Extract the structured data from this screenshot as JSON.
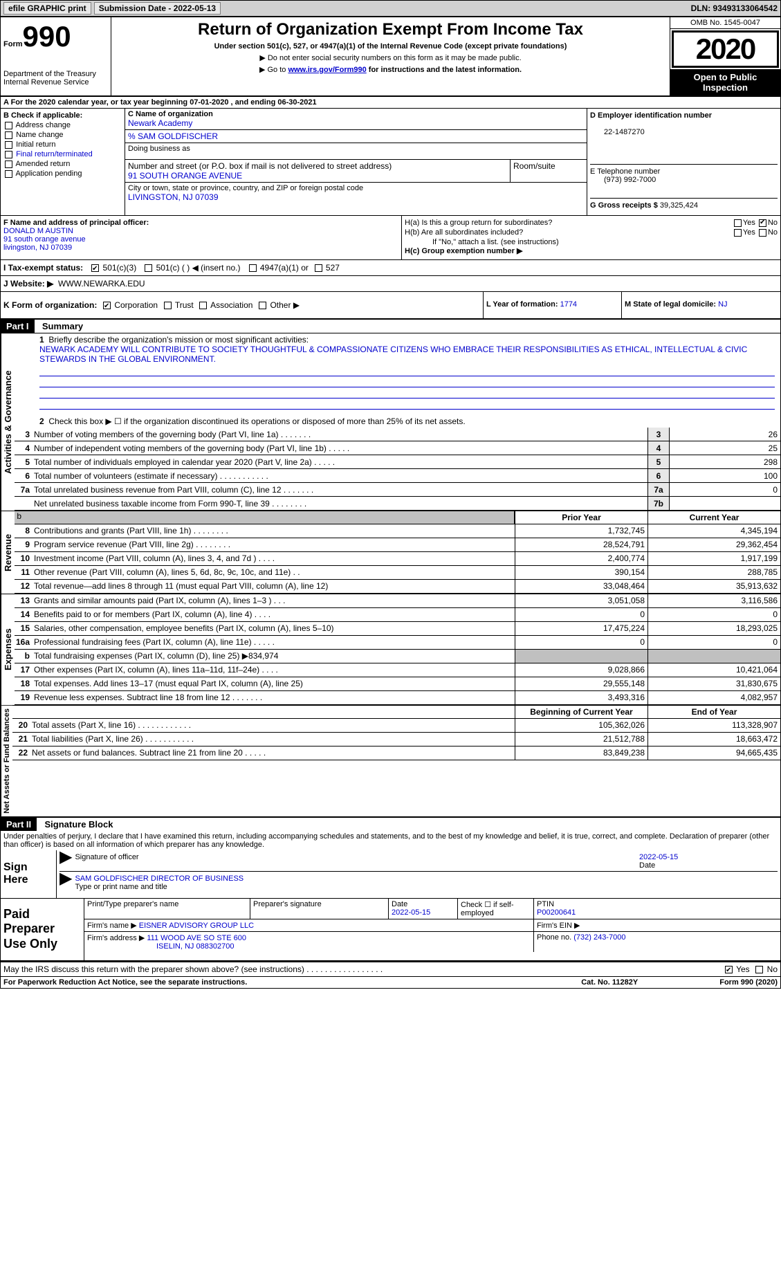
{
  "topbar": {
    "efile": "efile GRAPHIC print",
    "submission": "Submission Date - 2022-05-13",
    "dln": "DLN: 93493133064542"
  },
  "header": {
    "form_prefix": "Form",
    "form_number": "990",
    "dept": "Department of the Treasury\nInternal Revenue Service",
    "title": "Return of Organization Exempt From Income Tax",
    "subtitle": "Under section 501(c), 527, or 4947(a)(1) of the Internal Revenue Code (except private foundations)",
    "note1": "▶ Do not enter social security numbers on this form as it may be made public.",
    "note2_pre": "▶ Go to ",
    "note2_link": "www.irs.gov/Form990",
    "note2_post": " for instructions and the latest information.",
    "omb": "OMB No. 1545-0047",
    "year": "2020",
    "inspection": "Open to Public Inspection"
  },
  "sectionA": "A For the 2020 calendar year, or tax year beginning 07-01-2020     , and ending 06-30-2021",
  "sectionB": {
    "header": "B Check if applicable:",
    "items": [
      "Address change",
      "Name change",
      "Initial return",
      "Final return/terminated",
      "Amended return",
      "Application pending"
    ]
  },
  "sectionC": {
    "c_label": "C Name of organization",
    "org_name": "Newark Academy",
    "care_of": "% SAM GOLDFISCHER",
    "dba_label": "Doing business as",
    "addr_label": "Number and street (or P.O. box if mail is not delivered to street address)",
    "room_label": "Room/suite",
    "addr": "91 SOUTH ORANGE AVENUE",
    "city_label": "City or town, state or province, country, and ZIP or foreign postal code",
    "city": "LIVINGSTON, NJ  07039"
  },
  "sectionD": {
    "d_label": "D Employer identification number",
    "ein": "22-1487270",
    "e_label": "E Telephone number",
    "phone": "(973) 992-7000",
    "g_label": "G Gross receipts $",
    "gross": "39,325,424"
  },
  "sectionF": {
    "label": "F Name and address of principal officer:",
    "name": "DONALD M AUSTIN",
    "addr1": "91 south orange avenue",
    "addr2": "livingston, NJ  07039"
  },
  "sectionH": {
    "ha": "H(a)  Is this a group return for subordinates?",
    "hb": "H(b)  Are all subordinates included?",
    "hb_note": "If \"No,\" attach a list. (see instructions)",
    "hc": "H(c)  Group exemption number ▶",
    "yes": "Yes",
    "no": "No"
  },
  "rowI": {
    "label": "I   Tax-exempt status:",
    "o1": "501(c)(3)",
    "o2": "501(c) (  ) ◀ (insert no.)",
    "o3": "4947(a)(1) or",
    "o4": "527"
  },
  "rowJ": {
    "label": "J   Website: ▶",
    "value": "WWW.NEWARKA.EDU"
  },
  "rowK": {
    "label": "K Form of organization:",
    "corp": "Corporation",
    "trust": "Trust",
    "assoc": "Association",
    "other": "Other ▶",
    "l_label": "L Year of formation:",
    "l_val": "1774",
    "m_label": "M State of legal domicile:",
    "m_val": "NJ"
  },
  "part1": {
    "header": "Part I",
    "title": "Summary",
    "side1": "Activities & Governance",
    "side2": "Revenue",
    "side3": "Expenses",
    "side4": "Net Assets or Fund Balances",
    "brief_label": "Briefly describe the organization's mission or most significant activities:",
    "mission": "NEWARK ACADEMY WILL CONTRIBUTE TO SOCIETY THOUGHTFUL & COMPASSIONATE CITIZENS WHO EMBRACE THEIR RESPONSIBILITIES AS ETHICAL, INTELLECTUAL & CIVIC STEWARDS IN THE GLOBAL ENVIRONMENT.",
    "line2": "Check this box ▶ ☐  if the organization discontinued its operations or disposed of more than 25% of its net assets.",
    "gov_lines": [
      {
        "n": "3",
        "d": "Number of voting members of the governing body (Part VI, line 1a)   .    .    .    .    .    .    .",
        "b": "3",
        "v": "26"
      },
      {
        "n": "4",
        "d": "Number of independent voting members of the governing body (Part VI, line 1b)   .    .    .    .    .",
        "b": "4",
        "v": "25"
      },
      {
        "n": "5",
        "d": "Total number of individuals employed in calendar year 2020 (Part V, line 2a)   .    .    .    .    .",
        "b": "5",
        "v": "298"
      },
      {
        "n": "6",
        "d": "Total number of volunteers (estimate if necessary)   .    .    .    .    .    .    .    .    .    .    .",
        "b": "6",
        "v": "100"
      },
      {
        "n": "7a",
        "d": "Total unrelated business revenue from Part VIII, column (C), line 12   .    .    .    .    .    .    .",
        "b": "7a",
        "v": "0"
      },
      {
        "n": "",
        "d": "Net unrelated business taxable income from Form 990-T, line 39   .    .    .    .    .    .    .    .",
        "b": "7b",
        "v": ""
      }
    ],
    "prior_year": "Prior Year",
    "current_year": "Current Year",
    "rev_lines": [
      {
        "n": "8",
        "d": "Contributions and grants (Part VIII, line 1h)   .    .    .    .    .    .    .    .",
        "v1": "1,732,745",
        "v2": "4,345,194"
      },
      {
        "n": "9",
        "d": "Program service revenue (Part VIII, line 2g)   .    .    .    .    .    .    .    .",
        "v1": "28,524,791",
        "v2": "29,362,454"
      },
      {
        "n": "10",
        "d": "Investment income (Part VIII, column (A), lines 3, 4, and 7d )   .    .    .    .",
        "v1": "2,400,774",
        "v2": "1,917,199"
      },
      {
        "n": "11",
        "d": "Other revenue (Part VIII, column (A), lines 5, 6d, 8c, 9c, 10c, and 11e)   .    .",
        "v1": "390,154",
        "v2": "288,785"
      },
      {
        "n": "12",
        "d": "Total revenue—add lines 8 through 11 (must equal Part VIII, column (A), line 12)",
        "v1": "33,048,464",
        "v2": "35,913,632"
      }
    ],
    "exp_lines": [
      {
        "n": "13",
        "d": "Grants and similar amounts paid (Part IX, column (A), lines 1–3 )   .    .    .",
        "v1": "3,051,058",
        "v2": "3,116,586"
      },
      {
        "n": "14",
        "d": "Benefits paid to or for members (Part IX, column (A), line 4)   .    .    .    .",
        "v1": "0",
        "v2": "0"
      },
      {
        "n": "15",
        "d": "Salaries, other compensation, employee benefits (Part IX, column (A), lines 5–10)",
        "v1": "17,475,224",
        "v2": "18,293,025"
      },
      {
        "n": "16a",
        "d": "Professional fundraising fees (Part IX, column (A), line 11e)   .    .    .    .    .",
        "v1": "0",
        "v2": "0"
      },
      {
        "n": "b",
        "d": "Total fundraising expenses (Part IX, column (D), line 25) ▶834,974",
        "v1": "",
        "v2": "",
        "shaded": true
      },
      {
        "n": "17",
        "d": "Other expenses (Part IX, column (A), lines 11a–11d, 11f–24e)   .    .    .    .",
        "v1": "9,028,866",
        "v2": "10,421,064"
      },
      {
        "n": "18",
        "d": "Total expenses. Add lines 13–17 (must equal Part IX, column (A), line 25)",
        "v1": "29,555,148",
        "v2": "31,830,675"
      },
      {
        "n": "19",
        "d": "Revenue less expenses. Subtract line 18 from line 12   .    .    .    .    .    .    .",
        "v1": "3,493,316",
        "v2": "4,082,957"
      }
    ],
    "begin_year": "Beginning of Current Year",
    "end_year": "End of Year",
    "net_lines": [
      {
        "n": "20",
        "d": "Total assets (Part X, line 16)   .    .    .    .    .    .    .    .    .    .    .    .",
        "v1": "105,362,026",
        "v2": "113,328,907"
      },
      {
        "n": "21",
        "d": "Total liabilities (Part X, line 26)   .    .    .    .    .    .    .    .    .    .    .",
        "v1": "21,512,788",
        "v2": "18,663,472"
      },
      {
        "n": "22",
        "d": "Net assets or fund balances. Subtract line 21 from line 20   .    .    .    .    .",
        "v1": "83,849,238",
        "v2": "94,665,435"
      }
    ]
  },
  "part2": {
    "header": "Part II",
    "title": "Signature Block",
    "decl": "Under penalties of perjury, I declare that I have examined this return, including accompanying schedules and statements, and to the best of my knowledge and belief, it is true, correct, and complete. Declaration of preparer (other than officer) is based on all information of which preparer has any knowledge.",
    "sign_here": "Sign Here",
    "sig_officer": "Signature of officer",
    "sig_date": "2022-05-15",
    "date_label": "Date",
    "officer_name": "SAM GOLDFISCHER  DIRECTOR OF BUSINESS",
    "officer_label": "Type or print name and title",
    "paid": "Paid Preparer Use Only",
    "prep_name_label": "Print/Type preparer's name",
    "prep_sig_label": "Preparer's signature",
    "prep_date_label": "Date",
    "prep_date": "2022-05-15",
    "self_emp": "Check ☐ if self-employed",
    "ptin_label": "PTIN",
    "ptin": "P00200641",
    "firm_name_label": "Firm's name    ▶",
    "firm_name": "EISNER ADVISORY GROUP LLC",
    "firm_ein_label": "Firm's EIN ▶",
    "firm_addr_label": "Firm's address ▶",
    "firm_addr1": "111 WOOD AVE SO STE 600",
    "firm_addr2": "ISELIN, NJ  088302700",
    "firm_phone_label": "Phone no.",
    "firm_phone": "(732) 243-7000",
    "may_discuss": "May the IRS discuss this return with the preparer shown above? (see instructions)   .    .    .    .    .    .    .    .    .    .    .    .    .    .    .    .    .",
    "yes": "Yes",
    "no": "No"
  },
  "footer": {
    "notice": "For Paperwork Reduction Act Notice, see the separate instructions.",
    "cat": "Cat. No. 11282Y",
    "form": "Form 990 (2020)"
  }
}
